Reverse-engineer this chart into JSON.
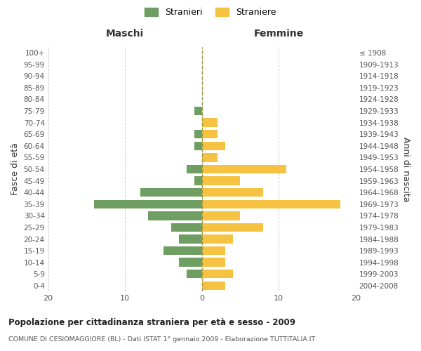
{
  "age_groups": [
    "0-4",
    "5-9",
    "10-14",
    "15-19",
    "20-24",
    "25-29",
    "30-34",
    "35-39",
    "40-44",
    "45-49",
    "50-54",
    "55-59",
    "60-64",
    "65-69",
    "70-74",
    "75-79",
    "80-84",
    "85-89",
    "90-94",
    "95-99",
    "100+"
  ],
  "birth_years": [
    "2004-2008",
    "1999-2003",
    "1994-1998",
    "1989-1993",
    "1984-1988",
    "1979-1983",
    "1974-1978",
    "1969-1973",
    "1964-1968",
    "1959-1963",
    "1954-1958",
    "1949-1953",
    "1944-1948",
    "1939-1943",
    "1934-1938",
    "1929-1933",
    "1924-1928",
    "1919-1923",
    "1914-1918",
    "1909-1913",
    "≤ 1908"
  ],
  "maschi": [
    0,
    2,
    3,
    5,
    3,
    4,
    7,
    14,
    8,
    1,
    2,
    0,
    1,
    1,
    0,
    1,
    0,
    0,
    0,
    0,
    0
  ],
  "femmine": [
    3,
    4,
    3,
    3,
    4,
    8,
    5,
    18,
    8,
    5,
    11,
    2,
    3,
    2,
    2,
    0,
    0,
    0,
    0,
    0,
    0
  ],
  "maschi_color": "#6e9e61",
  "femmine_color": "#f5c242",
  "title": "Popolazione per cittadinanza straniera per età e sesso - 2009",
  "subtitle": "COMUNE DI CESIOMAGGIORE (BL) - Dati ISTAT 1° gennaio 2009 - Elaborazione TUTTITALIA.IT",
  "ylabel_left": "Fasce di età",
  "ylabel_right": "Anni di nascita",
  "xlabel_maschi": "Maschi",
  "xlabel_femmine": "Femmine",
  "legend_maschi": "Stranieri",
  "legend_femmine": "Straniere",
  "xlim": 20,
  "bg_color": "#ffffff",
  "grid_color": "#cccccc"
}
